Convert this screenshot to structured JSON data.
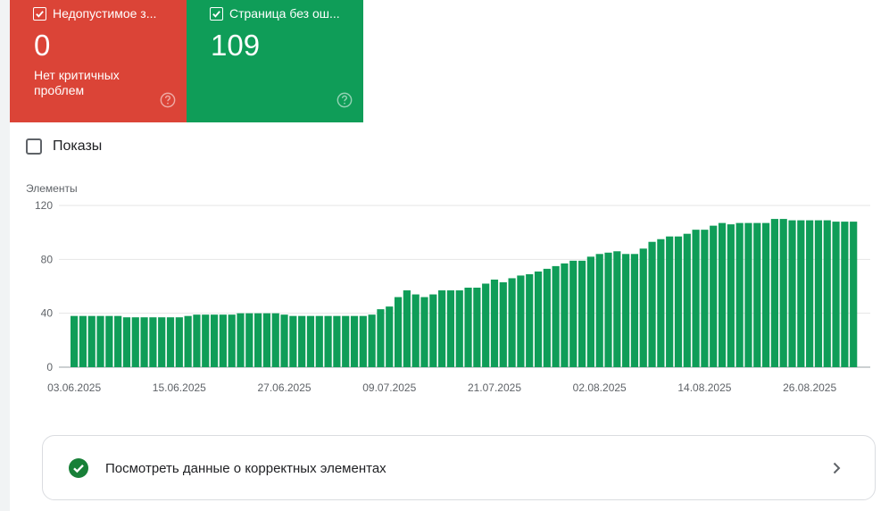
{
  "cards": [
    {
      "title": "Недопустимое з...",
      "count": "0",
      "subtitle": "Нет критичных проблем",
      "color": "#db4437",
      "icon": "checkbox-checked-icon"
    },
    {
      "title": "Страница без ош...",
      "count": "109",
      "subtitle": "",
      "color": "#0f9d58",
      "icon": "checkbox-checked-icon"
    }
  ],
  "shows": {
    "label": "Показы",
    "checked": false
  },
  "chart_data": {
    "type": "bar",
    "ylabel": "Элементы",
    "ylim": [
      0,
      120
    ],
    "yticks": [
      0,
      40,
      80,
      120
    ],
    "grid": true,
    "bar_color": "#0f9d58",
    "x_tick_labels": [
      "03.06.2025",
      "15.06.2025",
      "27.06.2025",
      "09.07.2025",
      "21.07.2025",
      "02.08.2025",
      "14.08.2025",
      "26.08.2025"
    ],
    "x_tick_index": [
      0,
      12,
      24,
      36,
      48,
      60,
      72,
      84
    ],
    "values": [
      38,
      38,
      38,
      38,
      38,
      38,
      37,
      37,
      37,
      37,
      37,
      37,
      37,
      38,
      39,
      39,
      39,
      39,
      39,
      40,
      40,
      40,
      40,
      40,
      39,
      38,
      38,
      38,
      38,
      38,
      38,
      38,
      38,
      38,
      39,
      43,
      45,
      52,
      57,
      54,
      52,
      54,
      57,
      57,
      57,
      59,
      59,
      62,
      65,
      63,
      66,
      68,
      69,
      71,
      73,
      75,
      77,
      79,
      79,
      82,
      84,
      85,
      86,
      84,
      84,
      88,
      93,
      95,
      97,
      97,
      99,
      102,
      102,
      105,
      107,
      106,
      107,
      107,
      107,
      107,
      110,
      110,
      109,
      109,
      109,
      109,
      109,
      108,
      108,
      108
    ]
  },
  "cta": {
    "label": "Посмотреть данные о корректных элементах",
    "icon": "check-circle-icon",
    "chevron": "chevron-right-icon"
  }
}
